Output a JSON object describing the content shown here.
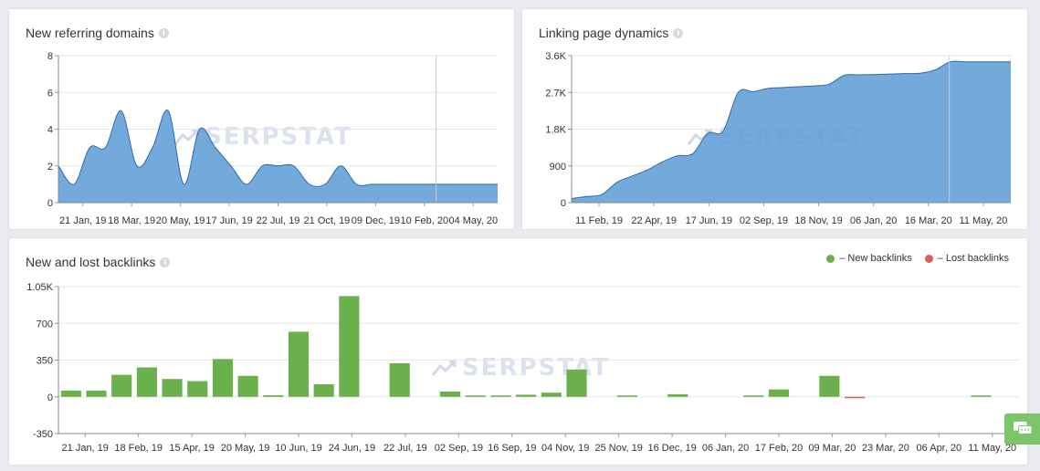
{
  "chart_data": [
    {
      "id": "referring",
      "type": "area",
      "title": "New referring domains",
      "y_ticks": [
        0,
        2,
        4,
        6,
        8
      ],
      "ylim": [
        0,
        8
      ],
      "x_tick_labels": [
        "21 Jan, 19",
        "18 Mar, 19",
        "20 May, 19",
        "17 Jun, 19",
        "22 Jul, 19",
        "21 Oct, 19",
        "09 Dec, 19",
        "10 Feb, 20",
        "04 May, 20"
      ],
      "values": [
        2,
        1,
        3,
        3,
        5,
        2,
        3,
        5,
        1,
        4,
        3,
        2,
        1,
        2,
        2,
        2,
        1,
        1,
        2,
        1,
        1,
        1,
        1,
        1,
        1,
        1,
        1,
        1,
        1
      ],
      "color": "#5b9bd5"
    },
    {
      "id": "linking",
      "type": "area",
      "title": "Linking page dynamics",
      "y_tick_labels": [
        "0",
        "900",
        "1.8K",
        "2.7K",
        "3.6K"
      ],
      "y_ticks": [
        0,
        900,
        1800,
        2700,
        3600
      ],
      "ylim": [
        0,
        3600
      ],
      "x_tick_labels": [
        "11 Feb, 19",
        "22 Apr, 19",
        "17 Jun, 19",
        "02 Sep, 19",
        "18 Nov, 19",
        "06 Jan, 20",
        "16 Mar, 20",
        "11 May, 20"
      ],
      "values": [
        100,
        150,
        200,
        500,
        650,
        800,
        1000,
        1150,
        1200,
        1700,
        1750,
        2700,
        2720,
        2800,
        2820,
        2840,
        2860,
        2900,
        3120,
        3130,
        3140,
        3150,
        3160,
        3170,
        3250,
        3450,
        3450,
        3450,
        3450,
        3450
      ],
      "color": "#5b9bd5"
    },
    {
      "id": "backlinks",
      "type": "bar",
      "title": "New and lost backlinks",
      "y_tick_labels": [
        "-350",
        "0",
        "350",
        "700",
        "1.05K"
      ],
      "y_ticks": [
        -350,
        0,
        350,
        700,
        1050
      ],
      "ylim": [
        -350,
        1050
      ],
      "x_tick_labels": [
        "21 Jan, 19",
        "18 Feb, 19",
        "15 Apr, 19",
        "20 May, 19",
        "10 Jun, 19",
        "24 Jun, 19",
        "22 Jul, 19",
        "02 Sep, 19",
        "16 Sep, 19",
        "04 Nov, 19",
        "25 Nov, 19",
        "16 Dec, 19",
        "06 Jan, 20",
        "17 Feb, 20",
        "09 Mar, 20",
        "23 Mar, 20",
        "06 Apr, 20",
        "11 May, 20"
      ],
      "series": [
        {
          "name": "– New backlinks",
          "color": "#6ab04c",
          "values": [
            60,
            60,
            210,
            280,
            170,
            150,
            360,
            200,
            15,
            620,
            120,
            960,
            0,
            320,
            0,
            50,
            10,
            10,
            20,
            40,
            260,
            0,
            10,
            0,
            25,
            0,
            0,
            10,
            70,
            0,
            200,
            0,
            0,
            0,
            0,
            0,
            5,
            0
          ]
        },
        {
          "name": "– Lost backlinks",
          "color": "#e05c5c",
          "values": [
            0,
            0,
            0,
            0,
            0,
            0,
            0,
            0,
            0,
            0,
            0,
            0,
            0,
            0,
            0,
            0,
            0,
            0,
            0,
            0,
            0,
            0,
            0,
            0,
            0,
            0,
            0,
            0,
            0,
            0,
            0,
            -10,
            0,
            0,
            0,
            0,
            0,
            0
          ]
        }
      ]
    }
  ],
  "watermark": "SERPSTAT"
}
